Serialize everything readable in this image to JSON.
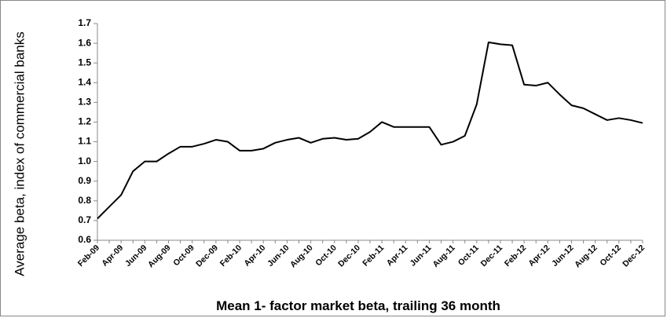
{
  "chart_data": {
    "type": "line",
    "ylabel": "Average beta, index of commercial banks",
    "xlabel": "Mean 1- factor market beta, trailing 36 month",
    "categories": [
      "Feb-09",
      null,
      "Apr-09",
      null,
      "Jun-09",
      null,
      "Aug-09",
      null,
      "Oct-09",
      null,
      "Dec-09",
      null,
      "Feb-10",
      null,
      "Apr-10",
      null,
      "Jun-10",
      null,
      "Aug-10",
      null,
      "Oct-10",
      null,
      "Dec-10",
      null,
      "Feb-11",
      null,
      "Apr-11",
      null,
      "Jun-11",
      null,
      "Aug-11",
      null,
      "Oct-11",
      null,
      "Dec-11",
      null,
      "Feb-12",
      null,
      "Apr-12",
      null,
      "Jun-12",
      null,
      "Aug-12",
      null,
      "Oct-12",
      null,
      "Dec-12"
    ],
    "series": [
      {
        "color": "#000000",
        "values": [
          0.71,
          0.77,
          0.83,
          0.95,
          1.0,
          1.0,
          1.04,
          1.075,
          1.075,
          1.09,
          1.11,
          1.1,
          1.055,
          1.055,
          1.065,
          1.095,
          1.11,
          1.12,
          1.095,
          1.115,
          1.12,
          1.11,
          1.115,
          1.15,
          1.2,
          1.175,
          1.175,
          1.175,
          1.175,
          1.085,
          1.1,
          1.13,
          1.29,
          1.605,
          1.595,
          1.59,
          1.39,
          1.385,
          1.4,
          1.34,
          1.285,
          1.27,
          1.24,
          1.21,
          1.22,
          1.21,
          1.195
        ]
      }
    ],
    "ylim": [
      0.6,
      1.7
    ],
    "yticks": [
      0.6,
      0.7,
      0.8,
      0.9,
      {
        "value": 1,
        "label": "1.0"
      },
      1.1,
      1.2,
      1.3,
      1.4,
      1.5,
      1.6,
      1.7
    ],
    "grid": false
  }
}
